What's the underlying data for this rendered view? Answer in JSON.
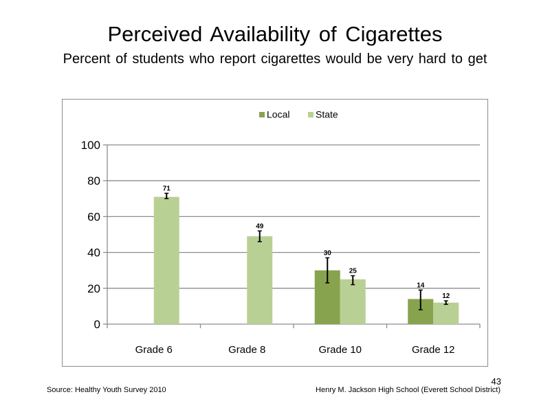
{
  "slide": {
    "title": "Perceived  Availability  of Cigarettes",
    "subtitle": "Percent  of students  who report cigarettes  would  be very hard  to get",
    "page_number": "43"
  },
  "footer": {
    "source": "Source: Healthy Youth Survey 2010",
    "school": "Henry M.  Jackson High  School (Everett School District)"
  },
  "colors": {
    "local": "#88a34d",
    "state": "#b9d094",
    "gridline": "#8c8c8c",
    "error_bar": "#000000"
  },
  "chart_data": {
    "type": "bar",
    "categories": [
      "Grade 6",
      "Grade 8",
      "Grade 10",
      "Grade 12"
    ],
    "series": [
      {
        "name": "Local",
        "values": [
          null,
          null,
          30,
          14
        ],
        "labels": [
          "",
          "",
          "30",
          "14"
        ],
        "error_low": [
          null,
          null,
          23,
          8
        ],
        "error_high": [
          null,
          null,
          37,
          19
        ]
      },
      {
        "name": "State",
        "values": [
          71,
          49,
          25,
          12
        ],
        "labels": [
          "71",
          "49",
          "25",
          "12"
        ],
        "error_low": [
          70,
          46,
          22,
          11
        ],
        "error_high": [
          73,
          52,
          27,
          13
        ]
      }
    ],
    "yticks": [
      0,
      20,
      40,
      60,
      80,
      100
    ],
    "ylim": [
      0,
      100
    ],
    "grid": true,
    "legend_position": "top-center"
  }
}
